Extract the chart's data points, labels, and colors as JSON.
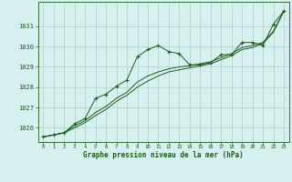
{
  "title": "Graphe pression niveau de la mer (hPa)",
  "background_color": "#d6f0f0",
  "grid_color": "#b0cfc0",
  "line_color": "#1a5c1a",
  "xlim": [
    -0.5,
    23.5
  ],
  "ylim": [
    1025.3,
    1032.2
  ],
  "yticks": [
    1026,
    1027,
    1028,
    1029,
    1030,
    1031
  ],
  "xticks": [
    0,
    1,
    2,
    3,
    4,
    5,
    6,
    7,
    8,
    9,
    10,
    11,
    12,
    13,
    14,
    15,
    16,
    17,
    18,
    19,
    20,
    21,
    22,
    23
  ],
  "series1": [
    1025.55,
    1025.65,
    1025.75,
    1026.2,
    1026.45,
    1027.45,
    1027.65,
    1028.05,
    1028.35,
    1029.5,
    1029.85,
    1030.05,
    1029.75,
    1029.65,
    1029.1,
    1029.1,
    1029.2,
    1029.6,
    1029.6,
    1030.2,
    1030.2,
    1030.05,
    1031.1,
    1031.75
  ],
  "series2": [
    1025.55,
    1025.65,
    1025.75,
    1026.1,
    1026.35,
    1026.75,
    1027.05,
    1027.45,
    1027.75,
    1028.25,
    1028.55,
    1028.75,
    1028.9,
    1029.0,
    1029.05,
    1029.15,
    1029.25,
    1029.45,
    1029.65,
    1029.95,
    1030.05,
    1030.2,
    1030.75,
    1031.75
  ],
  "series3": [
    1025.55,
    1025.65,
    1025.75,
    1026.0,
    1026.25,
    1026.6,
    1026.9,
    1027.3,
    1027.6,
    1028.0,
    1028.3,
    1028.55,
    1028.75,
    1028.85,
    1028.95,
    1029.05,
    1029.15,
    1029.35,
    1029.55,
    1029.85,
    1029.95,
    1030.15,
    1030.7,
    1031.75
  ]
}
